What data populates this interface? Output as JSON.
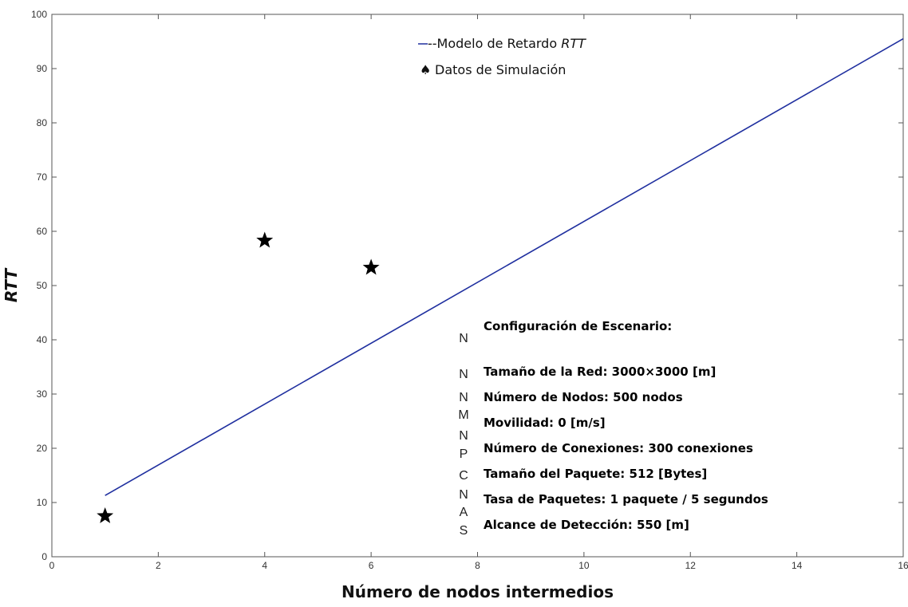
{
  "chart_data": {
    "type": "line",
    "title": "",
    "xlabel": "Número de nodos intermedios",
    "ylabel": "RTT",
    "xlim": [
      0,
      16
    ],
    "ylim": [
      0,
      100
    ],
    "xticks": [
      0,
      2,
      4,
      6,
      8,
      10,
      12,
      14,
      16
    ],
    "yticks": [
      0,
      10,
      20,
      30,
      40,
      50,
      60,
      70,
      80,
      90,
      100
    ],
    "grid": false,
    "legend_position": "top-center",
    "series": [
      {
        "name_prefix": "--Modelo de Retardo ",
        "name_italic": "RTT",
        "kind": "line",
        "color": "#1f2f9f",
        "x": [
          1,
          16
        ],
        "y": [
          11.3,
          95.5
        ]
      },
      {
        "name": "Datos de Simulación",
        "kind": "scatter",
        "marker": "star",
        "legend_symbol": "♠",
        "color": "#000000",
        "x": [
          1,
          4,
          6
        ],
        "y": [
          7.5,
          58.3,
          53.3
        ]
      }
    ],
    "annotation": {
      "title": "Configuración de Escenario:",
      "lines": [
        "Tamaño de la Red: 3000×3000 [m]",
        "Número de Nodos: 500 nodos",
        "Movilidad: 0 [m/s]",
        "Número de Conexiones: 300 conexiones",
        "Tamaño del Paquete: 512 [Bytes]",
        "Tasa de Paquetes: 1 paquete / 5 segundos",
        "Alcance de Detección: 550 [m]"
      ],
      "letters": [
        "N",
        "N",
        "N",
        "M",
        "N",
        "P",
        "C",
        "N",
        "A",
        "S"
      ]
    }
  }
}
